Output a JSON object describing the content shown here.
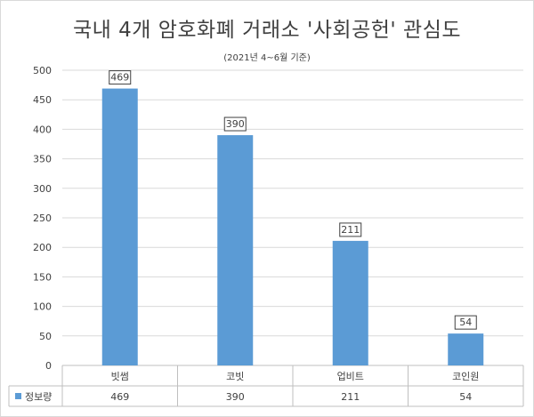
{
  "chart_data": {
    "type": "bar",
    "title": "국내 4개 암호화폐 거래소 '사회공헌' 관심도",
    "subtitle": "(2021년 4~6월 기준)",
    "categories": [
      "빗썸",
      "코빗",
      "업비트",
      "코인원"
    ],
    "series": [
      {
        "name": "정보량",
        "values": [
          469,
          390,
          211,
          54
        ],
        "color": "#5b9bd5"
      }
    ],
    "ylim": [
      0,
      500
    ],
    "yticks": [
      0,
      50,
      100,
      150,
      200,
      250,
      300,
      350,
      400,
      450,
      500
    ],
    "grid": true,
    "data_table": true
  }
}
